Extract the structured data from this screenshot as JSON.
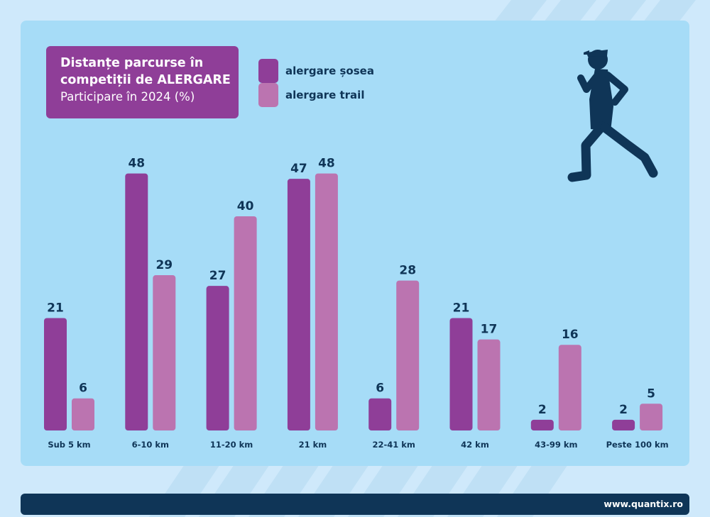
{
  "header": {
    "title_line1": "Distanțe parcurse în",
    "title_line2": "competiții de ALERGARE",
    "subtitle": "Participare în 2024 (%)"
  },
  "legend": [
    {
      "label": "alergare șosea",
      "color": "#8f3e98"
    },
    {
      "label": "alergare trail",
      "color": "#bb74b0"
    }
  ],
  "chart_data": {
    "type": "bar",
    "title": "Distanțe parcurse în competiții de ALERGARE",
    "subtitle": "Participare în 2024 (%)",
    "xlabel": "",
    "ylabel": "",
    "ylim": [
      0,
      50
    ],
    "grid": false,
    "legend_position": "top-left",
    "categories": [
      "Sub 5 km",
      "6-10 km",
      "11-20 km",
      "21 km",
      "22-41 km",
      "42 km",
      "43-99 km",
      "Peste 100 km"
    ],
    "series": [
      {
        "name": "alergare șosea",
        "color": "#8f3e98",
        "values": [
          21,
          48,
          27,
          47,
          6,
          21,
          2,
          2
        ]
      },
      {
        "name": "alergare trail",
        "color": "#bb74b0",
        "values": [
          6,
          29,
          40,
          48,
          28,
          17,
          16,
          5
        ]
      }
    ]
  },
  "icons": {
    "runner": "runner-icon"
  },
  "colors": {
    "background": "#cfe9fb",
    "panel": "#a6dcf7",
    "navy": "#0f3557"
  },
  "footer": {
    "url": "www.quantix.ro"
  }
}
